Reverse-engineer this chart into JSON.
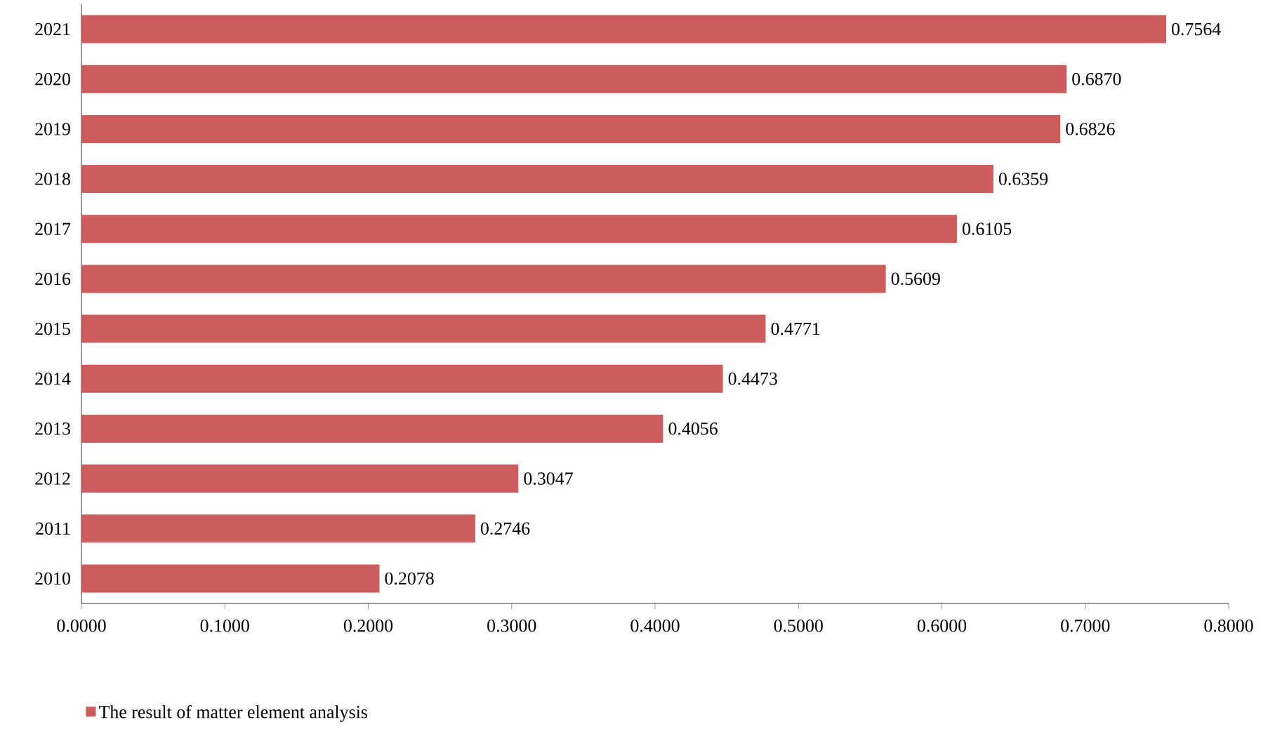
{
  "chart_data": {
    "type": "bar",
    "orientation": "horizontal",
    "categories": [
      "2021",
      "2020",
      "2019",
      "2018",
      "2017",
      "2016",
      "2015",
      "2014",
      "2013",
      "2012",
      "2011",
      "2010"
    ],
    "series": [
      {
        "name": "The result of matter element analysis",
        "color": "#cd5c5c",
        "values": [
          0.7564,
          0.687,
          0.6826,
          0.6359,
          0.6105,
          0.5609,
          0.4771,
          0.4473,
          0.4056,
          0.3047,
          0.2746,
          0.2078
        ]
      }
    ],
    "value_labels": [
      "0.7564",
      "0.6870",
      "0.6826",
      "0.6359",
      "0.6105",
      "0.5609",
      "0.4771",
      "0.4473",
      "0.4056",
      "0.3047",
      "0.2746",
      "0.2078"
    ],
    "xlim": [
      0,
      0.8
    ],
    "xticks": [
      {
        "value": 0,
        "label": "0.0000"
      },
      {
        "value": 0.1,
        "label": "0.1000"
      },
      {
        "value": 0.2,
        "label": "0.2000"
      },
      {
        "value": 0.3,
        "label": "0.3000"
      },
      {
        "value": 0.4,
        "label": "0.4000"
      },
      {
        "value": 0.5,
        "label": "0.5000"
      },
      {
        "value": 0.6,
        "label": "0.6000"
      },
      {
        "value": 0.7,
        "label": "0.7000"
      },
      {
        "value": 0.8,
        "label": "0.8000"
      }
    ],
    "legend": "bottom left",
    "grid": false
  }
}
